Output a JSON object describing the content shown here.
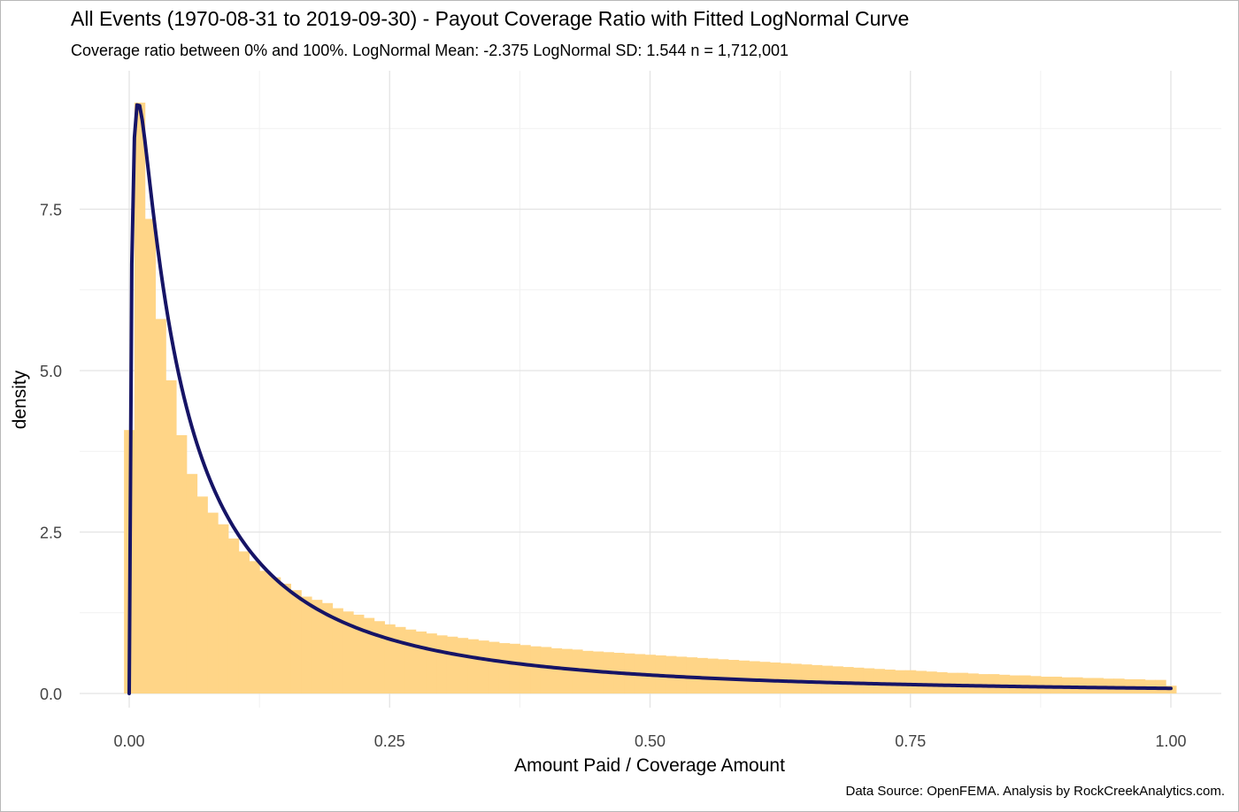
{
  "title": "All Events (1970-08-31 to 2019-09-30) - Payout Coverage Ratio with Fitted LogNormal Curve",
  "subtitle": "Coverage ratio between 0% and 100%. LogNormal Mean: -2.375 LogNormal SD: 1.544 n =  1,712,001",
  "caption": "Data Source: OpenFEMA.  Analysis by RockCreekAnalytics.com.",
  "colors": {
    "histogram_fill": "#ffd587",
    "curve": "#161466",
    "grid_major": "#e3e3e3",
    "grid_minor": "#f1f1f1",
    "background": "#ffffff"
  },
  "chart_data": {
    "type": "bar",
    "xlabel": "Amount Paid / Coverage Amount",
    "ylabel": "density",
    "xlim": [
      -0.045,
      1.045
    ],
    "ylim": [
      0,
      9.2
    ],
    "x_ticks": [
      {
        "value": 0,
        "label": "0.00"
      },
      {
        "value": 0.25,
        "label": "0.25"
      },
      {
        "value": 0.5,
        "label": "0.50"
      },
      {
        "value": 0.75,
        "label": "0.75"
      },
      {
        "value": 1,
        "label": "1.00"
      }
    ],
    "y_ticks": [
      {
        "value": 0,
        "label": "0.0"
      },
      {
        "value": 2.5,
        "label": "2.5"
      },
      {
        "value": 5,
        "label": "5.0"
      },
      {
        "value": 7.5,
        "label": "7.5"
      }
    ],
    "grid": true,
    "legend": "none",
    "histogram": {
      "bin_width": 0.01,
      "bin_start": -0.005,
      "values": [
        4.08,
        9.15,
        7.35,
        5.8,
        4.85,
        4.0,
        3.4,
        3.05,
        2.8,
        2.62,
        2.4,
        2.2,
        2.05,
        1.9,
        1.8,
        1.7,
        1.6,
        1.5,
        1.45,
        1.4,
        1.32,
        1.27,
        1.22,
        1.17,
        1.12,
        1.07,
        1.03,
        0.99,
        0.96,
        0.93,
        0.9,
        0.88,
        0.86,
        0.84,
        0.82,
        0.8,
        0.78,
        0.77,
        0.75,
        0.73,
        0.72,
        0.7,
        0.69,
        0.68,
        0.66,
        0.65,
        0.64,
        0.63,
        0.62,
        0.61,
        0.6,
        0.59,
        0.58,
        0.57,
        0.56,
        0.55,
        0.54,
        0.53,
        0.52,
        0.51,
        0.5,
        0.49,
        0.48,
        0.47,
        0.46,
        0.45,
        0.44,
        0.43,
        0.42,
        0.41,
        0.4,
        0.39,
        0.38,
        0.37,
        0.36,
        0.36,
        0.35,
        0.34,
        0.33,
        0.32,
        0.32,
        0.31,
        0.3,
        0.3,
        0.29,
        0.28,
        0.28,
        0.27,
        0.26,
        0.26,
        0.25,
        0.25,
        0.24,
        0.24,
        0.23,
        0.23,
        0.22,
        0.22,
        0.21,
        0.21,
        0.12
      ]
    },
    "fitted_curve": {
      "name": "LogNormal",
      "meanlog": -2.375,
      "sdlog": 1.544,
      "x_range": [
        0,
        1
      ]
    }
  }
}
